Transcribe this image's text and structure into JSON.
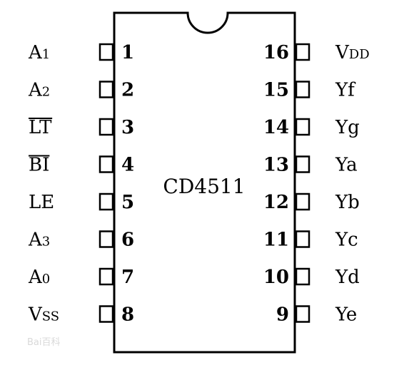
{
  "chip": {
    "name": "CD4511"
  },
  "left_pins": [
    {
      "number": "1",
      "signal": "A",
      "subscript": "1",
      "overline": false
    },
    {
      "number": "2",
      "signal": "A",
      "subscript": "2",
      "overline": false
    },
    {
      "number": "3",
      "signal": "LT",
      "subscript": "",
      "overline": true
    },
    {
      "number": "4",
      "signal": "BI",
      "subscript": "",
      "overline": true
    },
    {
      "number": "5",
      "signal": "LE",
      "subscript": "",
      "overline": false
    },
    {
      "number": "6",
      "signal": "A",
      "subscript": "3",
      "overline": false
    },
    {
      "number": "7",
      "signal": "A",
      "subscript": "0",
      "overline": false
    },
    {
      "number": "8",
      "signal": "V",
      "subscript": "SS",
      "overline": false
    }
  ],
  "right_pins": [
    {
      "number": "16",
      "signal": "V",
      "subscript": "DD"
    },
    {
      "number": "15",
      "signal": "Yf",
      "subscript": ""
    },
    {
      "number": "14",
      "signal": "Yg",
      "subscript": ""
    },
    {
      "number": "13",
      "signal": "Ya",
      "subscript": ""
    },
    {
      "number": "12",
      "signal": "Yb",
      "subscript": ""
    },
    {
      "number": "11",
      "signal": "Yc",
      "subscript": ""
    },
    {
      "number": "10",
      "signal": "Yd",
      "subscript": ""
    },
    {
      "number": "9",
      "signal": "Ye",
      "subscript": ""
    }
  ],
  "watermark": {
    "text": "Bai百科"
  }
}
